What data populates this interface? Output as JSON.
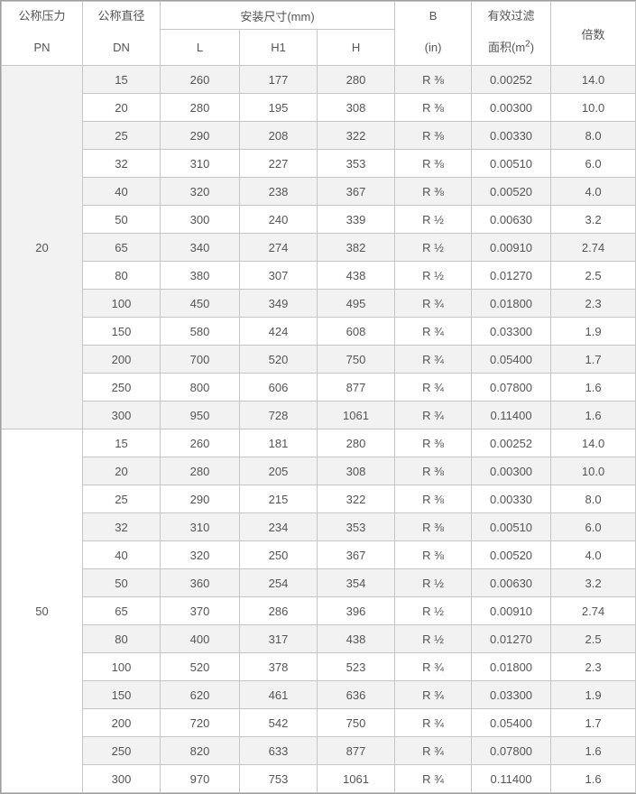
{
  "header": {
    "pressure": {
      "line1": "公称压力",
      "line2": "PN"
    },
    "diameter": {
      "line1": "公称直径",
      "line2": "DN"
    },
    "install_dims": "安装尺寸(mm)",
    "install_sub": [
      "L",
      "H1",
      "H"
    ],
    "b": {
      "line1": "B",
      "line2": "(in)"
    },
    "area": {
      "line1": "有效过滤",
      "line2_prefix": "面积(m",
      "line2_sup": "2",
      "line2_suffix": ")"
    },
    "multiple": "倍数"
  },
  "groups": [
    {
      "pn": "20",
      "rows": [
        [
          "15",
          "260",
          "177",
          "280",
          "R ⅜",
          "0.00252",
          "14.0"
        ],
        [
          "20",
          "280",
          "195",
          "308",
          "R ⅜",
          "0.00300",
          "10.0"
        ],
        [
          "25",
          "290",
          "208",
          "322",
          "R ⅜",
          "0.00330",
          "8.0"
        ],
        [
          "32",
          "310",
          "227",
          "353",
          "R ⅜",
          "0.00510",
          "6.0"
        ],
        [
          "40",
          "320",
          "238",
          "367",
          "R ⅜",
          "0.00520",
          "4.0"
        ],
        [
          "50",
          "300",
          "240",
          "339",
          "R ½",
          "0.00630",
          "3.2"
        ],
        [
          "65",
          "340",
          "274",
          "382",
          "R ½",
          "0.00910",
          "2.74"
        ],
        [
          "80",
          "380",
          "307",
          "438",
          "R ½",
          "0.01270",
          "2.5"
        ],
        [
          "100",
          "450",
          "349",
          "495",
          "R ¾",
          "0.01800",
          "2.3"
        ],
        [
          "150",
          "580",
          "424",
          "608",
          "R ¾",
          "0.03300",
          "1.9"
        ],
        [
          "200",
          "700",
          "520",
          "750",
          "R ¾",
          "0.05400",
          "1.7"
        ],
        [
          "250",
          "800",
          "606",
          "877",
          "R ¾",
          "0.07800",
          "1.6"
        ],
        [
          "300",
          "950",
          "728",
          "1061",
          "R ¾",
          "0.11400",
          "1.6"
        ]
      ]
    },
    {
      "pn": "50",
      "rows": [
        [
          "15",
          "260",
          "181",
          "280",
          "R ⅜",
          "0.00252",
          "14.0"
        ],
        [
          "20",
          "280",
          "205",
          "308",
          "R ⅜",
          "0.00300",
          "10.0"
        ],
        [
          "25",
          "290",
          "215",
          "322",
          "R ⅜",
          "0.00330",
          "8.0"
        ],
        [
          "32",
          "310",
          "234",
          "353",
          "R ⅜",
          "0.00510",
          "6.0"
        ],
        [
          "40",
          "320",
          "250",
          "367",
          "R ⅜",
          "0.00520",
          "4.0"
        ],
        [
          "50",
          "360",
          "254",
          "354",
          "R ½",
          "0.00630",
          "3.2"
        ],
        [
          "65",
          "370",
          "286",
          "396",
          "R ½",
          "0.00910",
          "2.74"
        ],
        [
          "80",
          "400",
          "317",
          "438",
          "R ½",
          "0.01270",
          "2.5"
        ],
        [
          "100",
          "520",
          "378",
          "523",
          "R ¾",
          "0.01800",
          "2.3"
        ],
        [
          "150",
          "620",
          "461",
          "636",
          "R ¾",
          "0.03300",
          "1.9"
        ],
        [
          "200",
          "720",
          "542",
          "750",
          "R ¾",
          "0.05400",
          "1.7"
        ],
        [
          "250",
          "820",
          "633",
          "877",
          "R ¾",
          "0.07800",
          "1.6"
        ],
        [
          "300",
          "970",
          "753",
          "1061",
          "R ¾",
          "0.11400",
          "1.6"
        ]
      ]
    }
  ],
  "colors": {
    "stripe": "#f2f2f2",
    "cell_border": "#c6c6c6",
    "outer_border": "#9e9e9e",
    "text": "#555555"
  }
}
